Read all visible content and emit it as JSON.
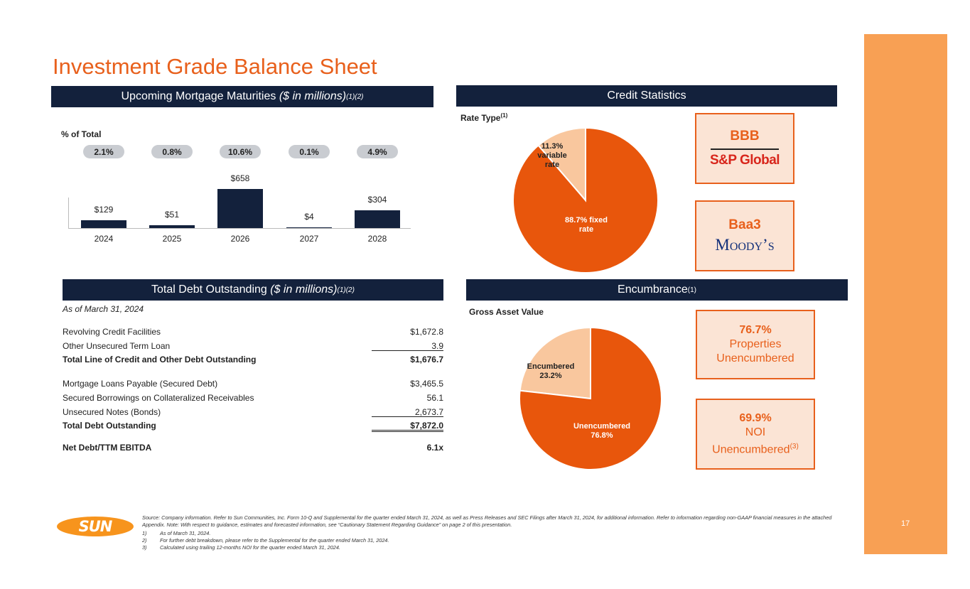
{
  "title": "Investment Grade Balance Sheet",
  "page_number": "17",
  "colors": {
    "accent": "#e8601c",
    "navy": "#13213c",
    "sidebar": "#f8a054",
    "light_orange": "#f9c79e"
  },
  "maturities": {
    "header": "Upcoming Mortgage Maturities",
    "header_units": "($ in millions)",
    "header_notes": "(1)(2)",
    "pct_label": "% of Total",
    "chart_data": {
      "type": "bar",
      "categories": [
        "2024",
        "2025",
        "2026",
        "2027",
        "2028"
      ],
      "values": [
        129,
        51,
        658,
        4,
        304
      ],
      "value_labels": [
        "$129",
        "$51",
        "$658",
        "$4",
        "$304"
      ],
      "pct_of_total": [
        "2.1%",
        "0.8%",
        "10.6%",
        "0.1%",
        "4.9%"
      ]
    }
  },
  "credit": {
    "header": "Credit Statistics",
    "rate_type_label": "Rate Type",
    "rate_type_note": "(1)",
    "chart_data": {
      "type": "pie",
      "slices": [
        {
          "label": "11.3% variable rate",
          "lines": [
            "11.3%",
            "variable",
            "rate"
          ],
          "value": 11.3,
          "color": "#f9c79e"
        },
        {
          "label": "88.7% fixed rate",
          "lines": [
            "88.7% fixed",
            "rate"
          ],
          "value": 88.7,
          "color": "#e8560c"
        }
      ]
    },
    "sp_rating": "BBB",
    "sp_name": "S&P Global",
    "moodys_rating": "Baa3",
    "moodys_name": "Moody’s"
  },
  "debt": {
    "header": "Total Debt Outstanding",
    "header_units": "($ in millions)",
    "header_notes": "(1)(2)",
    "as_of": "As of March 31, 2024",
    "rows": [
      {
        "label": "Revolving Credit Facilities",
        "value": "$1,672.8"
      },
      {
        "label": "Other Unsecured Term Loan",
        "value": "3.9"
      },
      {
        "label": "Total Line of Credit and Other Debt Outstanding",
        "value": "$1,676.7"
      },
      {
        "label": "Mortgage Loans Payable (Secured Debt)",
        "value": "$3,465.5"
      },
      {
        "label": "Secured Borrowings on Collateralized Receivables",
        "value": "56.1"
      },
      {
        "label": "Unsecured Notes (Bonds)",
        "value": "2,673.7"
      },
      {
        "label": "Total Debt Outstanding",
        "value": "$7,872.0"
      },
      {
        "label": "Net Debt/TTM EBITDA",
        "value": "6.1x"
      }
    ]
  },
  "encumbrance": {
    "header": "Encumbrance",
    "header_notes": "(1)",
    "gav_label": "Gross Asset Value",
    "chart_data": {
      "type": "pie",
      "slices": [
        {
          "label": "Encumbered 23.2%",
          "lines": [
            "Encumbered",
            "23.2%"
          ],
          "value": 23.2,
          "color": "#f9c79e"
        },
        {
          "label": "Unencumbered 76.8%",
          "lines": [
            "Unencumbered",
            "76.8%"
          ],
          "value": 76.8,
          "color": "#e8560c"
        }
      ]
    },
    "props_pct": "76.7%",
    "props_line1": "Properties",
    "props_line2": "Unencumbered",
    "noi_pct": "69.9%",
    "noi_line1": "NOI",
    "noi_line2": "Unencumbered",
    "noi_note": "(3)"
  },
  "logo_text": "SUN",
  "footnotes": {
    "source": "Source: Company information. Refer to Sun Communities, Inc. Form 10-Q and Supplemental for the quarter ended March 31, 2024, as well as Press Releases and SEC Filings after March 31, 2024, for additional information. Refer to information regarding non-GAAP financial measures in the attached Appendix. Note: With respect to guidance, estimates and forecasted information, see “Cautionary Statement Regarding Guidance” on page 2 of this presentation.",
    "notes": [
      {
        "num": "1)",
        "text": "As of March 31, 2024."
      },
      {
        "num": "2)",
        "text": "For further debt breakdown, please refer to the Supplemental for the quarter ended March 31, 2024."
      },
      {
        "num": "3)",
        "text": "Calculated using trailing 12-months NOI for the quarter ended March 31, 2024."
      }
    ]
  }
}
